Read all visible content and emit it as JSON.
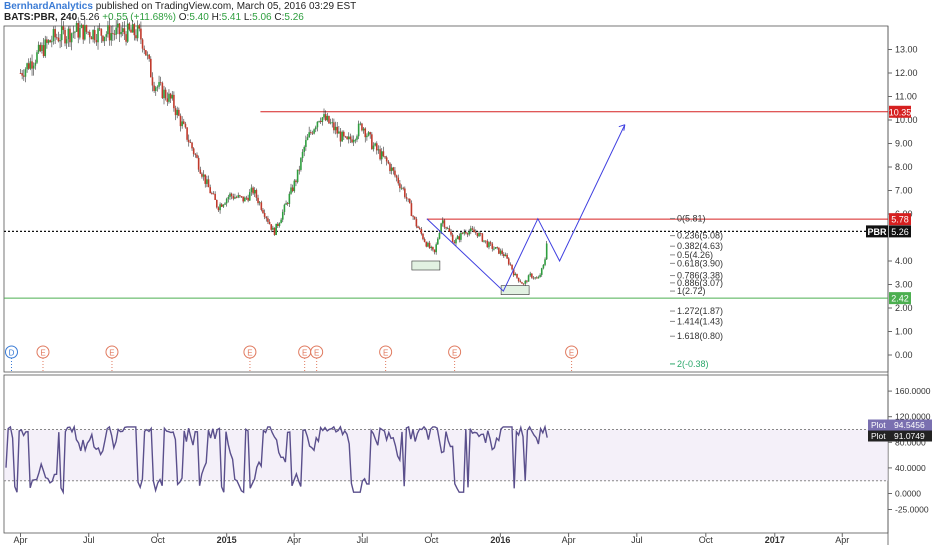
{
  "header": {
    "author": "BernhardAnalytics",
    "published_text": "published on TradingView.com, March 05, 2016 03:29 EST",
    "symbol": "BATS:PBR, 240",
    "last": "5.26",
    "change": "+0.55 (+11.68%)",
    "open_label": "O:",
    "open": "5.40",
    "high_label": "H:",
    "high": "5.41",
    "low_label": "L:",
    "low": "5.06",
    "close_label": "C:",
    "close": "5.26"
  },
  "colors": {
    "up": "#2e9e3e",
    "down": "#c0392b",
    "level_red": "#d62020",
    "level_green": "#4caf50",
    "wave_line": "#3f3fe0",
    "oscillator": "#5a4f8c",
    "axis_text": "#333333",
    "grid_border": "#555555"
  },
  "chart_data": [
    {
      "type": "line",
      "title": "",
      "x_tick_labels": [
        "Apr",
        "Jul",
        "Oct",
        "2015",
        "Apr",
        "Jul",
        "Oct",
        "2016",
        "Apr",
        "Jul",
        "Oct",
        "2017",
        "Apr"
      ],
      "y_tick_labels": [
        "13.00",
        "12.00",
        "11.00",
        "10.00",
        "9.00",
        "8.00",
        "7.00",
        "6.00",
        "4.00",
        "3.00",
        "2.00",
        "1.00",
        "0.00"
      ],
      "y_ticks": [
        13,
        12,
        11,
        10,
        9,
        8,
        7,
        6,
        4,
        3,
        2,
        1,
        0
      ],
      "ylim": [
        -0.5,
        14.0
      ],
      "series": [
        {
          "x": [
            "2014-04-01",
            "2014-05-15",
            "2014-06-15",
            "2014-07-15",
            "2014-09-05",
            "2014-09-12",
            "2014-09-25",
            "2014-10-20",
            "2014-11-20",
            "2014-12-05",
            "2014-12-20",
            "2015-01-05",
            "2015-01-25",
            "2015-02-05",
            "2015-02-20",
            "2015-03-05",
            "2015-03-20",
            "2015-04-05",
            "2015-04-15",
            "2015-04-25",
            "2015-05-05",
            "2015-05-20",
            "2015-06-10",
            "2015-07-01",
            "2015-07-15",
            "2015-08-05",
            "2015-08-25",
            "2015-09-10",
            "2015-09-25",
            "2015-10-05",
            "2015-10-15",
            "2015-11-01",
            "2015-11-15",
            "2015-12-01",
            "2015-12-15",
            "2016-01-05",
            "2016-01-15",
            "2016-01-20",
            "2016-02-01",
            "2016-02-10",
            "2016-02-20",
            "2016-02-29",
            "2016-03-04"
          ],
          "values": [
            12.0,
            13.5,
            13.8,
            13.7,
            13.7,
            13.3,
            11.6,
            10.8,
            8.5,
            7.3,
            6.3,
            6.8,
            6.6,
            7.0,
            6.1,
            5.2,
            6.3,
            7.6,
            8.9,
            9.6,
            10.2,
            9.8,
            9.0,
            9.8,
            8.9,
            8.1,
            7.0,
            5.6,
            4.7,
            4.3,
            5.8,
            4.8,
            5.3,
            5.2,
            4.7,
            4.3,
            3.8,
            3.4,
            3.0,
            3.4,
            3.2,
            3.9,
            5.26
          ]
        }
      ],
      "horizontal_levels": [
        {
          "label": "10.35",
          "value": 10.35,
          "color": "#d62020"
        },
        {
          "label": "5.78",
          "value": 5.78,
          "color": "#d62020"
        },
        {
          "label": "5.26",
          "value": 5.26,
          "color": "#111111",
          "name": "PBR"
        },
        {
          "label": "2.42",
          "value": 2.42,
          "color": "#4caf50"
        }
      ],
      "fibonacci_levels": [
        {
          "label": "0(5.81)",
          "value": 5.81
        },
        {
          "label": "0.236(5.08)",
          "value": 5.08
        },
        {
          "label": "0.382(4.63)",
          "value": 4.63
        },
        {
          "label": "0.5(4.26)",
          "value": 4.26
        },
        {
          "label": "0.618(3.90)",
          "value": 3.9
        },
        {
          "label": "0.786(3.38)",
          "value": 3.38
        },
        {
          "label": "0.886(3.07)",
          "value": 3.07
        },
        {
          "label": "1(2.72)",
          "value": 2.72
        },
        {
          "label": "1.272(1.87)",
          "value": 1.87
        },
        {
          "label": "1.414(1.43)",
          "value": 1.43
        },
        {
          "label": "1.618(0.80)",
          "value": 0.8
        },
        {
          "label": "2(-0.38)",
          "value": -0.38
        }
      ],
      "wave_projection": {
        "x": [
          "2015-09-25",
          "2016-01-05",
          "2016-02-20",
          "2016-03-20",
          "2016-06-15"
        ],
        "y": [
          5.8,
          2.72,
          5.8,
          4.0,
          9.8
        ]
      },
      "event_markers": [
        "D",
        "E",
        "E",
        "E",
        "E",
        "E",
        "E",
        "E",
        "E"
      ]
    },
    {
      "type": "line",
      "title": "",
      "y_tick_labels": [
        "160.0000",
        "120.0000",
        "80.0000",
        "40.0000",
        "0.0000",
        "-25.0000"
      ],
      "ylim": [
        -40,
        180
      ],
      "reference_lines": [
        100,
        20
      ],
      "series": [
        {
          "name": "Plot",
          "last_value": "94.5456"
        },
        {
          "name": "Plot",
          "last_value": "91.0749"
        }
      ]
    }
  ]
}
